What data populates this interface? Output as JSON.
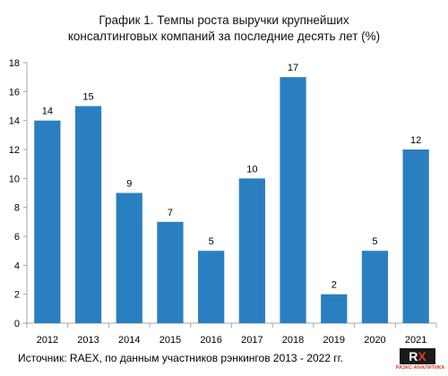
{
  "title_lines": [
    "График 1. Темпы роста выручки крупнейших",
    "консалтинговых компаний за последние десять лет (%)"
  ],
  "source": "Источник: RAEX, по данным участников рэнкингов 2013 - 2022 гг.",
  "logo": {
    "rx_left": "R",
    "rx_right": "X",
    "brand": "РАЭКС-АНАЛИТИКА"
  },
  "colors": {
    "bar": "#2a7fc1",
    "axis": "#a6a6a6",
    "text": "#000000"
  },
  "chart_data": {
    "type": "bar",
    "categories": [
      "2012",
      "2013",
      "2014",
      "2015",
      "2016",
      "2017",
      "2018",
      "2019",
      "2020",
      "2021"
    ],
    "values": [
      14,
      15,
      9,
      7,
      5,
      10,
      17,
      2,
      5,
      12
    ],
    "data_labels": [
      "14",
      "15",
      "9",
      "7",
      "5",
      "10",
      "17",
      "2",
      "5",
      "12"
    ],
    "title": "График 1. Темпы роста выручки крупнейших консалтинговых компаний за последние десять лет (%)",
    "xlabel": "",
    "ylabel": "",
    "ylim": [
      0,
      18
    ],
    "yticks": [
      0,
      2,
      4,
      6,
      8,
      10,
      12,
      14,
      16,
      18
    ],
    "grid": false,
    "legend": "none"
  }
}
